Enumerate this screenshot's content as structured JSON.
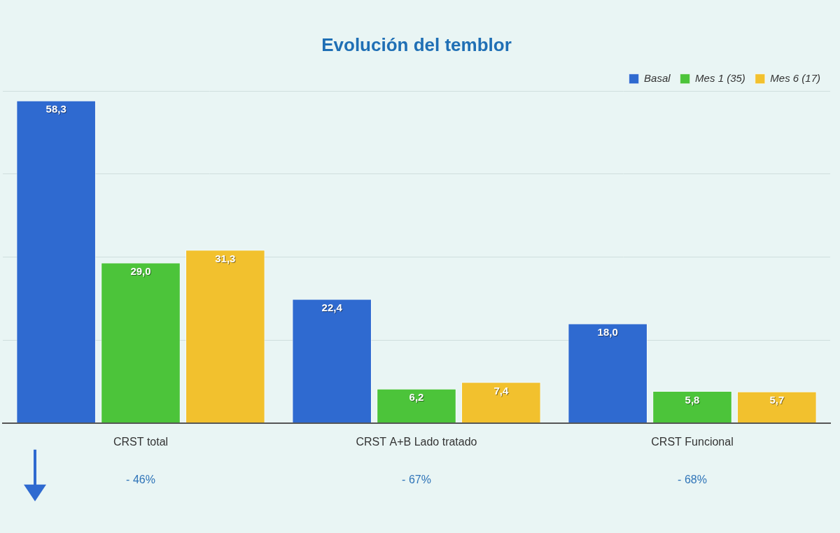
{
  "chart_data": {
    "type": "bar",
    "title": "Evolución del temblor",
    "categories": [
      "CRST total",
      "CRST A+B Lado tratado",
      "CRST Funcional"
    ],
    "series": [
      {
        "name": "Basal",
        "color": "#2f6ad0",
        "values": [
          58.3,
          22.4,
          18.0
        ],
        "value_labels": [
          "58,3",
          "22,4",
          "18,0"
        ]
      },
      {
        "name": "Mes 1 (35)",
        "color": "#4cc43a",
        "values": [
          29.0,
          6.2,
          5.8
        ],
        "value_labels": [
          "29,0",
          "6,2",
          "5,8"
        ]
      },
      {
        "name": "Mes 6 (17)",
        "color": "#f2c12e",
        "values": [
          31.3,
          7.4,
          5.7
        ],
        "value_labels": [
          "31,3",
          "7,4",
          "5,7"
        ]
      }
    ],
    "ylim": [
      0,
      60
    ],
    "yticks": [
      0,
      15,
      30,
      45,
      60
    ],
    "grid": true,
    "legend": "upper right",
    "data_labels": true,
    "tick_labels": "x",
    "annotations": [
      "- 46%",
      "- 67%",
      "- 68%"
    ]
  }
}
